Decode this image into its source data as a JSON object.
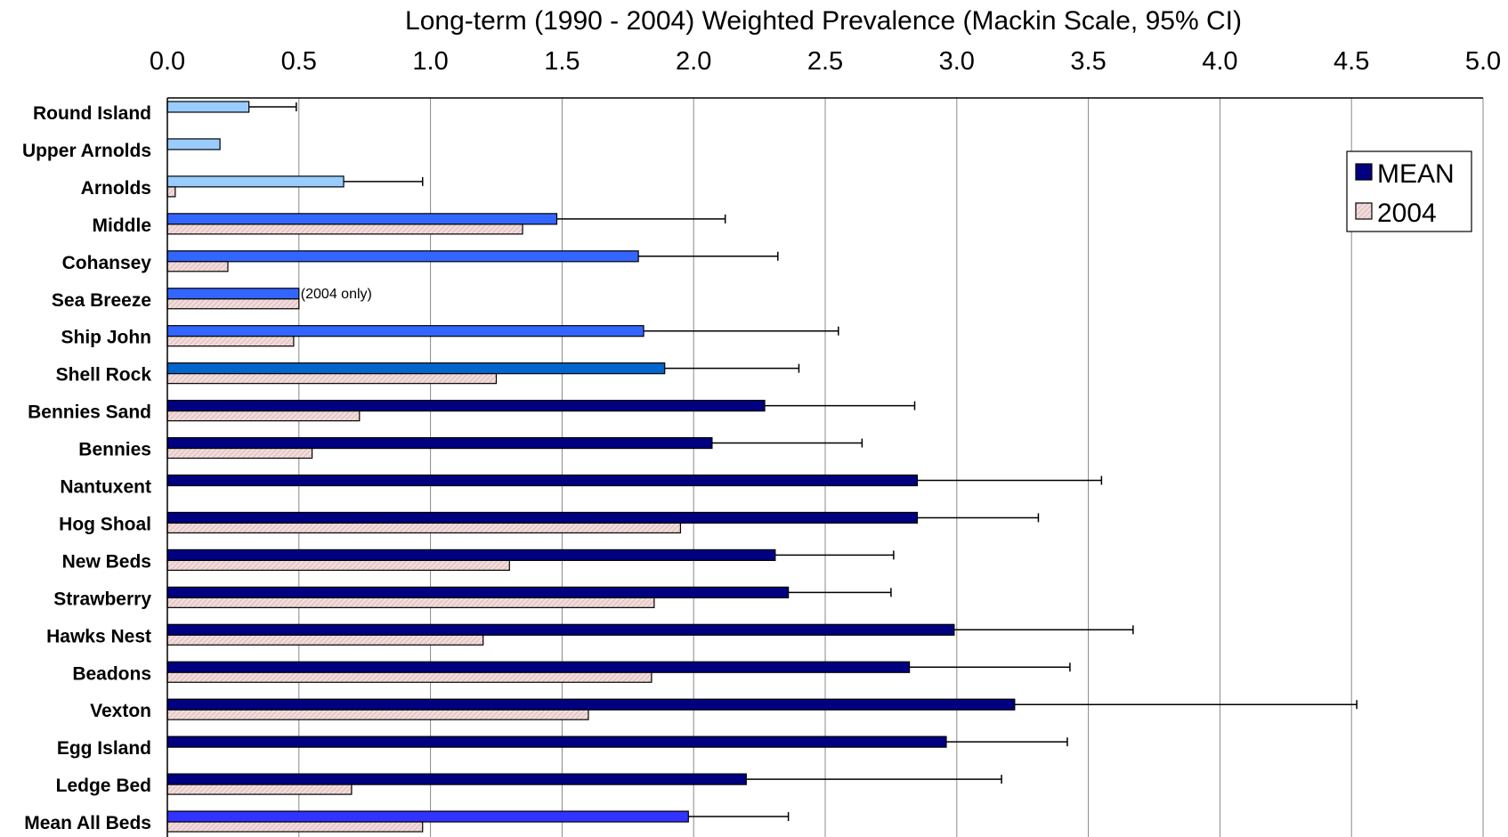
{
  "chart_data": {
    "type": "bar",
    "orientation": "horizontal",
    "title": "Long-term (1990 - 2004) Weighted Prevalence (Mackin Scale, 95% CI)",
    "xlim": [
      0,
      5
    ],
    "x_ticks": [
      "0.0",
      "0.5",
      "1.0",
      "1.5",
      "2.0",
      "2.5",
      "3.0",
      "3.5",
      "4.0",
      "4.5",
      "5.0"
    ],
    "x_tick_values": [
      0,
      0.5,
      1,
      1.5,
      2,
      2.5,
      3,
      3.5,
      4,
      4.5,
      5
    ],
    "grid": "vertical",
    "legend_position": "top-right",
    "categories": [
      "Round Island",
      "Upper Arnolds",
      "Arnolds",
      "Middle",
      "Cohansey",
      "Sea Breeze",
      "Ship John",
      "Shell Rock",
      "Bennies Sand",
      "Bennies",
      "Nantuxent",
      "Hog Shoal",
      "New Beds",
      "Strawberry",
      "Hawks Nest",
      "Beadons",
      "Vexton",
      "Egg Island",
      "Ledge Bed",
      "Mean All Beds"
    ],
    "series": [
      {
        "name": "MEAN",
        "legend_color": "#000080",
        "values": [
          0.31,
          0.2,
          0.67,
          1.48,
          1.79,
          0.5,
          1.81,
          1.89,
          2.27,
          2.07,
          2.85,
          2.85,
          2.31,
          2.36,
          2.99,
          2.82,
          3.22,
          2.96,
          2.2,
          1.98
        ],
        "ci_upper": [
          0.49,
          null,
          0.97,
          2.12,
          2.32,
          null,
          2.55,
          2.4,
          2.84,
          2.64,
          3.55,
          3.31,
          2.76,
          2.75,
          3.67,
          3.43,
          4.52,
          3.42,
          3.17,
          2.36
        ],
        "bar_colors": [
          "#99ccff",
          "#99ccff",
          "#99ccff",
          "#3366ff",
          "#3366ff",
          "#3366ff",
          "#3366ff",
          "#0066cc",
          "#000080",
          "#000080",
          "#000080",
          "#000080",
          "#000080",
          "#000080",
          "#000080",
          "#000080",
          "#000080",
          "#000080",
          "#000080",
          "#3333ff"
        ]
      },
      {
        "name": "2004",
        "legend_color": "#f2dcdb",
        "values": [
          0,
          0,
          0.03,
          1.35,
          0.23,
          0.5,
          0.48,
          1.25,
          0.73,
          0.55,
          0,
          1.95,
          1.3,
          1.85,
          1.2,
          1.84,
          1.6,
          0,
          0.7,
          0.97
        ]
      }
    ],
    "annotations": [
      {
        "category": "Sea Breeze",
        "text": "(2004 only)"
      }
    ]
  }
}
